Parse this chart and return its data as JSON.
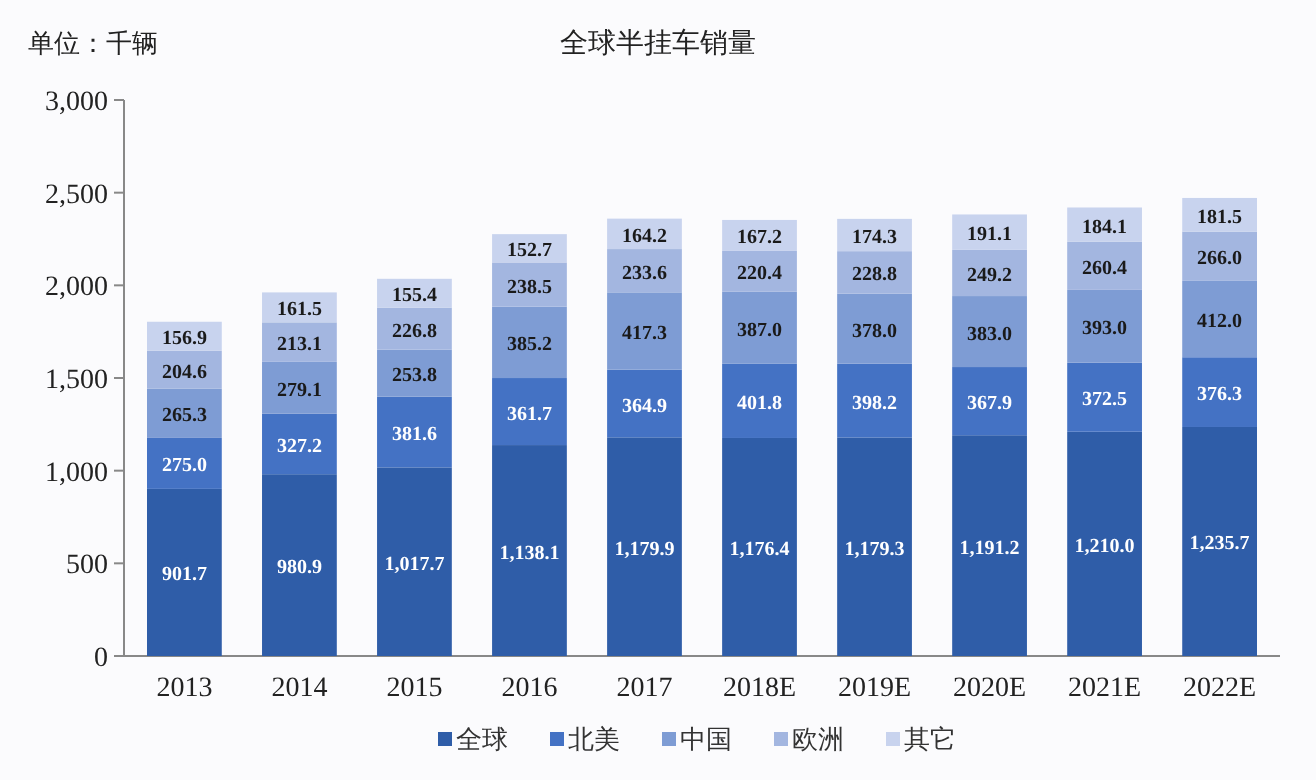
{
  "chart_data": {
    "type": "bar",
    "title": "全球半挂车销量",
    "ylabel": "单位：千辆",
    "stacked": true,
    "legend": "bottom",
    "grid": false,
    "categories": [
      "2013",
      "2014",
      "2015",
      "2016",
      "2017",
      "2018E",
      "2019E",
      "2020E",
      "2021E",
      "2022E"
    ],
    "ylim": [
      0,
      3000
    ],
    "yticks": [
      {
        "value": 0,
        "label": "0"
      },
      {
        "value": 500,
        "label": "500"
      },
      {
        "value": 1000,
        "label": "1,000"
      },
      {
        "value": 1500,
        "label": "1,500"
      },
      {
        "value": 2000,
        "label": "2,000"
      },
      {
        "value": 2500,
        "label": "2,500"
      },
      {
        "value": 3000,
        "label": "3,000"
      }
    ],
    "series": [
      {
        "name": "全球",
        "color": "#2f5da8",
        "values": [
          901.7,
          980.9,
          1017.7,
          1138.1,
          1179.9,
          1176.4,
          1179.3,
          1191.2,
          1210.0,
          1235.7
        ],
        "value_labels": [
          "901.7",
          "980.9",
          "1,017.7",
          "1,138.1",
          "1,179.9",
          "1,176.4",
          "1,179.3",
          "1,191.2",
          "1,210.0",
          "1,235.7"
        ]
      },
      {
        "name": "北美",
        "color": "#4472c4",
        "values": [
          275.0,
          327.2,
          381.6,
          361.7,
          364.9,
          401.8,
          398.2,
          367.9,
          372.5,
          376.3
        ],
        "value_labels": [
          "275.0",
          "327.2",
          "381.6",
          "361.7",
          "364.9",
          "401.8",
          "398.2",
          "367.9",
          "372.5",
          "376.3"
        ]
      },
      {
        "name": "中国",
        "color": "#7e9cd4",
        "values": [
          265.3,
          279.1,
          253.8,
          385.2,
          417.3,
          387.0,
          378.0,
          383.0,
          393.0,
          412.0
        ],
        "value_labels": [
          "265.3",
          "279.1",
          "253.8",
          "385.2",
          "417.3",
          "387.0",
          "378.0",
          "383.0",
          "393.0",
          "412.0"
        ]
      },
      {
        "name": "欧洲",
        "color": "#a3b6e0",
        "values": [
          204.6,
          213.1,
          226.8,
          238.5,
          233.6,
          220.4,
          228.8,
          249.2,
          260.4,
          266.0
        ],
        "value_labels": [
          "204.6",
          "213.1",
          "226.8",
          "238.5",
          "233.6",
          "220.4",
          "228.8",
          "249.2",
          "260.4",
          "266.0"
        ]
      },
      {
        "name": "其它",
        "color": "#c8d3ee",
        "values": [
          156.9,
          161.5,
          155.4,
          152.7,
          164.2,
          167.2,
          174.3,
          191.1,
          184.1,
          181.5
        ],
        "value_labels": [
          "156.9",
          "161.5",
          "155.4",
          "152.7",
          "164.2",
          "167.2",
          "174.3",
          "191.1",
          "184.1",
          "181.5"
        ]
      }
    ]
  }
}
